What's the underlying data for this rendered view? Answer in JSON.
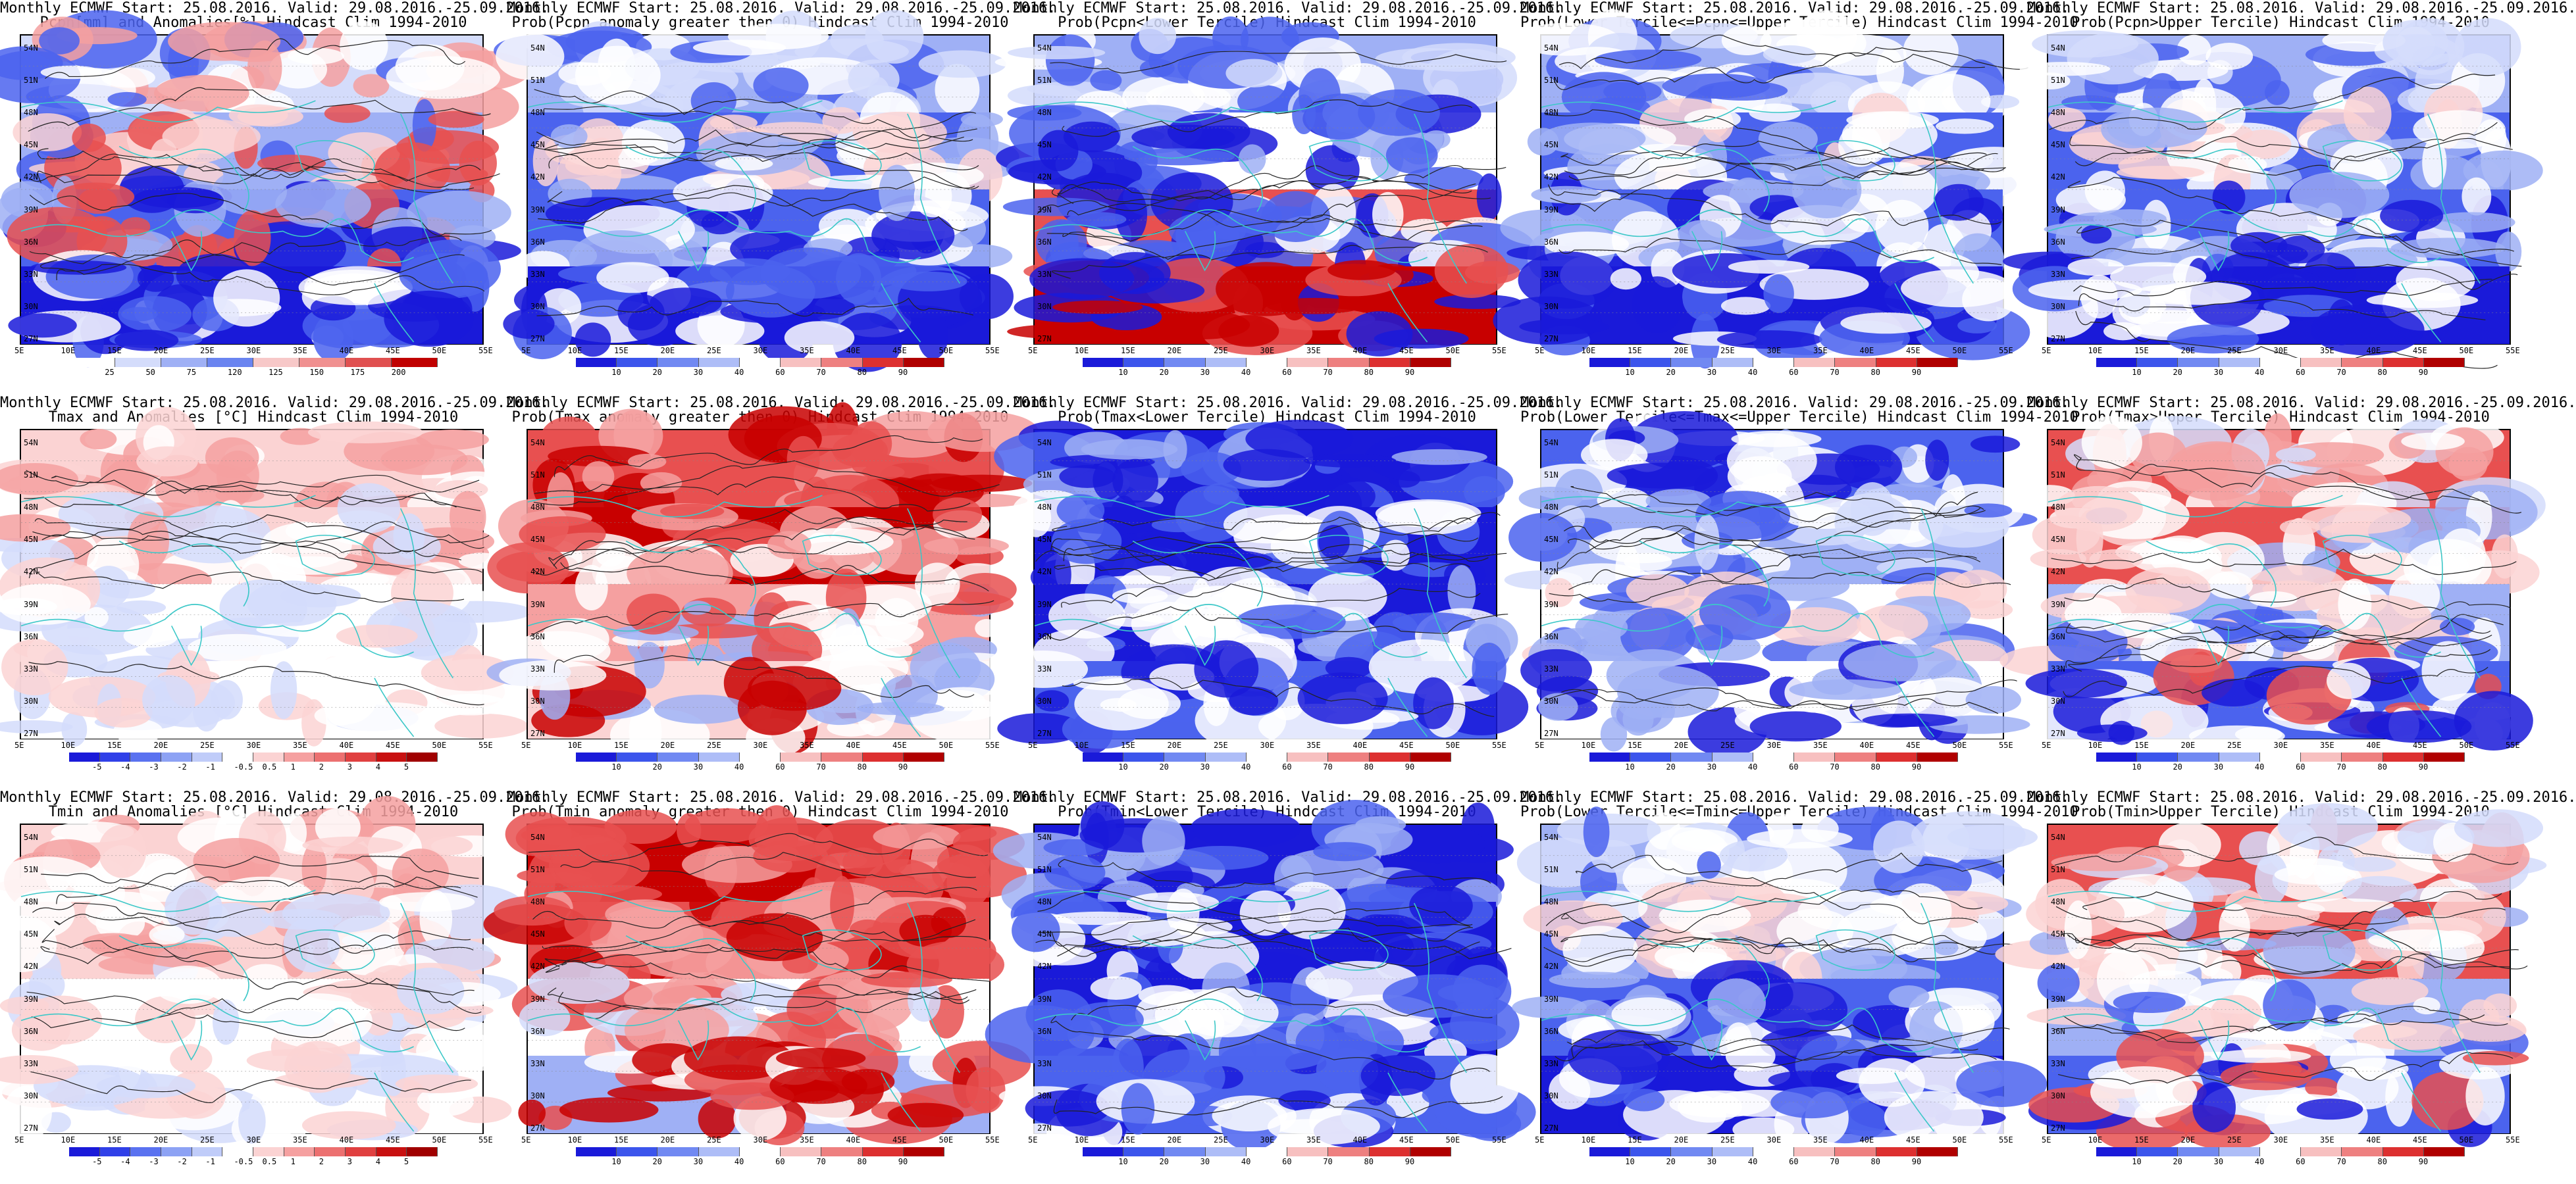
{
  "panels": [
    {
      "line1": "Monthly ECMWF Start: 25.08.2016. Valid: 29.08.2016.-25.09.2016.",
      "line2": "Pcpn[mm] and Anomalies[%] Hindcast Clim 1994-2010",
      "scheme": "anom_pcp",
      "colorbar_labels": [
        "25",
        "50",
        "75",
        "120",
        "125",
        "150",
        "175",
        "200"
      ]
    },
    {
      "line1": "Monthly ECMWF Start: 25.08.2016. Valid: 29.08.2016.-25.09.2016.",
      "line2": "Prob(Pcpn anomaly greater then 0) Hindcast Clim 1994-2010",
      "scheme": "prob_cold",
      "colorbar_labels": [
        "10",
        "20",
        "30",
        "40",
        "60",
        "70",
        "80",
        "90"
      ]
    },
    {
      "line1": "Monthly ECMWF Start: 25.08.2016. Valid: 29.08.2016.-25.09.2016.",
      "line2": "Prob(Pcpn<Lower Tercile) Hindcast Clim 1994-2010",
      "scheme": "prob_dry",
      "colorbar_labels": [
        "10",
        "20",
        "30",
        "40",
        "60",
        "70",
        "80",
        "90"
      ]
    },
    {
      "line1": "Monthly ECMWF Start: 25.08.2016. Valid: 29.08.2016.-25.09.2016.",
      "line2": "Prob(Lower Tercile<=Pcpn<=Upper Tercile) Hindcast Clim 1994-2010",
      "scheme": "prob_cold",
      "colorbar_labels": [
        "10",
        "20",
        "30",
        "40",
        "60",
        "70",
        "80",
        "90"
      ]
    },
    {
      "line1": "Monthly ECMWF Start: 25.08.2016. Valid: 29.08.2016.-25.09.2016.",
      "line2": "Prob(Pcpn>Upper Tercile) Hindcast Clim 1994-2010",
      "scheme": "prob_cold",
      "colorbar_labels": [
        "10",
        "20",
        "30",
        "40",
        "60",
        "70",
        "80",
        "90"
      ]
    },
    {
      "line1": "Monthly ECMWF Start: 25.08.2016. Valid: 29.08.2016.-25.09.2016.",
      "line2": "Tmax and Anomalies [°C] Hindcast Clim 1994-2010",
      "scheme": "anom_t_light",
      "colorbar_labels": [
        "-5",
        "-4",
        "-3",
        "-2",
        "-1",
        "-0.5",
        "0.5",
        "1",
        "2",
        "3",
        "4",
        "5"
      ]
    },
    {
      "line1": "Monthly ECMWF Start: 25.08.2016. Valid: 29.08.2016.-25.09.2016.",
      "line2": "Prob(Tmax anomaly greater then 0) Hindcast Clim 1994-2010",
      "scheme": "prob_warm",
      "colorbar_labels": [
        "10",
        "20",
        "30",
        "40",
        "60",
        "70",
        "80",
        "90"
      ]
    },
    {
      "line1": "Monthly ECMWF Start: 25.08.2016. Valid: 29.08.2016.-25.09.2016.",
      "line2": "Prob(Tmax<Lower Tercile) Hindcast Clim 1994-2010",
      "scheme": "prob_deepcold",
      "colorbar_labels": [
        "10",
        "20",
        "30",
        "40",
        "60",
        "70",
        "80",
        "90"
      ]
    },
    {
      "line1": "Monthly ECMWF Start: 25.08.2016. Valid: 29.08.2016.-25.09.2016.",
      "line2": "Prob(Lower Tercile<=Tmax<=Upper Tercile) Hindcast Clim 1994-2010",
      "scheme": "prob_mixed",
      "colorbar_labels": [
        "10",
        "20",
        "30",
        "40",
        "60",
        "70",
        "80",
        "90"
      ]
    },
    {
      "line1": "Monthly ECMWF Start: 25.08.2016. Valid: 29.08.2016.-25.09.2016.",
      "line2": "Prob(Tmax>Upper Tercile) Hindcast Clim 1994-2010",
      "scheme": "prob_mixed_warm",
      "colorbar_labels": [
        "10",
        "20",
        "30",
        "40",
        "60",
        "70",
        "80",
        "90"
      ]
    },
    {
      "line1": "Monthly ECMWF Start: 25.08.2016. Valid: 29.08.2016.-25.09.2016.",
      "line2": "Tmin and Anomalies [°C] Hindcast Clim 1994-2010",
      "scheme": "anom_t_light",
      "colorbar_labels": [
        "-5",
        "-4",
        "-3",
        "-2",
        "-1",
        "-0.5",
        "0.5",
        "1",
        "2",
        "3",
        "4",
        "5"
      ]
    },
    {
      "line1": "Monthly ECMWF Start: 25.08.2016. Valid: 29.08.2016.-25.09.2016.",
      "line2": "Prob(Tmin anomaly greater then 0) Hindcast Clim 1994-2010",
      "scheme": "prob_warm_north",
      "colorbar_labels": [
        "10",
        "20",
        "30",
        "40",
        "60",
        "70",
        "80",
        "90"
      ]
    },
    {
      "line1": "Monthly ECMWF Start: 25.08.2016. Valid: 29.08.2016.-25.09.2016.",
      "line2": "Prob(Tmin<Lower Tercile) Hindcast Clim 1994-2010",
      "scheme": "prob_deepcold",
      "colorbar_labels": [
        "10",
        "20",
        "30",
        "40",
        "60",
        "70",
        "80",
        "90"
      ]
    },
    {
      "line1": "Monthly ECMWF Start: 25.08.2016. Valid: 29.08.2016.-25.09.2016.",
      "line2": "Prob(Lower Tercile<=Tmin<=Upper Tercile) Hindcast Clim 1994-2010",
      "scheme": "prob_cold",
      "colorbar_labels": [
        "10",
        "20",
        "30",
        "40",
        "60",
        "70",
        "80",
        "90"
      ]
    },
    {
      "line1": "Monthly ECMWF Start: 25.08.2016. Valid: 29.08.2016.-25.09.2016.",
      "line2": "Prob(Tmin>Upper Tercile) Hindcast Clim 1994-2010",
      "scheme": "prob_mixed_warm",
      "colorbar_labels": [
        "10",
        "20",
        "30",
        "40",
        "60",
        "70",
        "80",
        "90"
      ]
    }
  ],
  "lat_labels": [
    "54N",
    "51N",
    "48N",
    "45N",
    "42N",
    "39N",
    "36N",
    "33N",
    "30N",
    "27N"
  ],
  "lon_labels": [
    "5E",
    "10E",
    "15E",
    "20E",
    "25E",
    "30E",
    "35E",
    "40E",
    "45E",
    "50E",
    "55E"
  ],
  "colors": {
    "deep_blue": "#1a1ad9",
    "mid_blue": "#4b63ee",
    "light_blue": "#9fb0f5",
    "pale_blue": "#d4dcfb",
    "white": "#ffffff",
    "pale_red": "#fbd3d3",
    "light_red": "#f5a0a0",
    "mid_red": "#e85050",
    "deep_red": "#c80000",
    "coast": "#3cc8c8",
    "contour": "#222222"
  }
}
